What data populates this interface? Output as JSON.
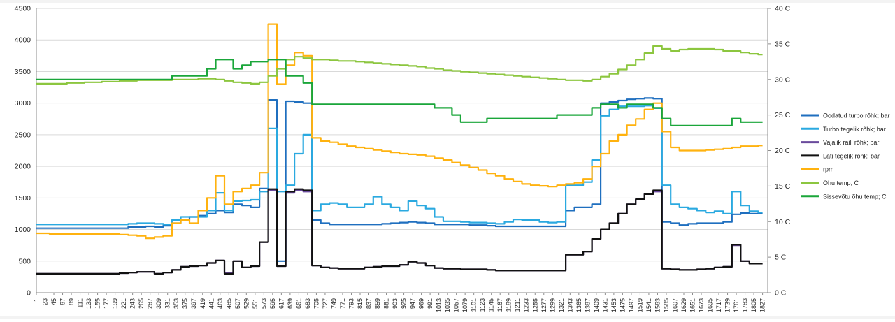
{
  "chart_data": {
    "type": "line",
    "x": [
      1,
      23,
      45,
      67,
      89,
      111,
      133,
      155,
      177,
      199,
      221,
      243,
      265,
      287,
      309,
      331,
      353,
      375,
      397,
      419,
      441,
      463,
      485,
      507,
      529,
      551,
      573,
      595,
      617,
      639,
      661,
      683,
      705,
      727,
      749,
      771,
      793,
      815,
      837,
      859,
      881,
      903,
      925,
      947,
      969,
      991,
      1013,
      1035,
      1057,
      1079,
      1101,
      1123,
      1145,
      1167,
      1189,
      1211,
      1233,
      1255,
      1277,
      1299,
      1321,
      1343,
      1365,
      1387,
      1409,
      1431,
      1453,
      1475,
      1497,
      1519,
      1541,
      1563,
      1585,
      1607,
      1629,
      1651,
      1673,
      1695,
      1717,
      1739,
      1761,
      1783,
      1805,
      1827
    ],
    "x_tick_labels": [
      "1",
      "23",
      "45",
      "67",
      "89",
      "111",
      "133",
      "155",
      "177",
      "199",
      "221",
      "243",
      "265",
      "287",
      "309",
      "331",
      "353",
      "375",
      "397",
      "419",
      "441",
      "463",
      "485",
      "507",
      "529",
      "551",
      "573",
      "595",
      "617",
      "639",
      "661",
      "683",
      "705",
      "727",
      "749",
      "771",
      "793",
      "815",
      "837",
      "859",
      "881",
      "903",
      "925",
      "947",
      "969",
      "991",
      "1013",
      "1035",
      "1057",
      "1079",
      "1101",
      "1123",
      "1145",
      "1167",
      "1189",
      "1211",
      "1233",
      "1255",
      "1277",
      "1299",
      "1321",
      "1343",
      "1365",
      "1387",
      "1409",
      "1431",
      "1453",
      "1475",
      "1497",
      "1519",
      "1541",
      "1563",
      "1585",
      "1607",
      "1629",
      "1651",
      "1673",
      "1695",
      "1717",
      "1739",
      "1761",
      "1783",
      "1805",
      "1827"
    ],
    "xlim": [
      1,
      1840
    ],
    "y_left": {
      "ylim": [
        0,
        4500
      ],
      "ticks": [
        "0",
        "500",
        "1000",
        "1500",
        "2000",
        "2500",
        "3000",
        "3500",
        "4000",
        "4500"
      ]
    },
    "y_right": {
      "ylim": [
        0,
        40
      ],
      "ticks": [
        "0 C",
        "5 C",
        "10 C",
        "15 C",
        "20 C",
        "25 C",
        "30 C",
        "35 C",
        "40 C"
      ]
    },
    "grid": "horizontal",
    "legend_position": "right",
    "series": [
      {
        "name": "Oodatud turbo rõhk; bar",
        "color": "#1f6fbf",
        "axis": "left",
        "values": [
          1020,
          1020,
          1020,
          1020,
          1020,
          1020,
          1020,
          1020,
          1020,
          1020,
          1020,
          1040,
          1040,
          1050,
          1040,
          1060,
          1100,
          1150,
          1200,
          1220,
          1250,
          1300,
          1270,
          1400,
          1380,
          1350,
          1650,
          3050,
          500,
          3030,
          3020,
          3000,
          1150,
          1100,
          1080,
          1080,
          1080,
          1080,
          1080,
          1080,
          1090,
          1100,
          1110,
          1120,
          1110,
          1100,
          1080,
          1080,
          1080,
          1080,
          1070,
          1070,
          1060,
          1050,
          1050,
          1050,
          1050,
          1050,
          1050,
          1050,
          1050,
          1300,
          1350,
          1350,
          1400,
          3000,
          3020,
          3040,
          3060,
          3070,
          3080,
          3070,
          1120,
          1100,
          1070,
          1090,
          1100,
          1100,
          1100,
          1120,
          1240,
          1260,
          1250,
          1250
        ]
      },
      {
        "name": "Turbo tegelik rõhk; bar",
        "color": "#2aa9e0",
        "axis": "left",
        "values": [
          1080,
          1080,
          1080,
          1080,
          1080,
          1080,
          1080,
          1080,
          1080,
          1080,
          1080,
          1090,
          1100,
          1100,
          1090,
          1080,
          1150,
          1200,
          1200,
          1200,
          1300,
          1580,
          1300,
          1450,
          1460,
          1470,
          1600,
          2600,
          1600,
          1700,
          2200,
          2500,
          1300,
          1400,
          1420,
          1400,
          1350,
          1350,
          1400,
          1520,
          1400,
          1350,
          1300,
          1450,
          1380,
          1330,
          1200,
          1130,
          1130,
          1120,
          1110,
          1110,
          1100,
          1090,
          1120,
          1160,
          1150,
          1150,
          1120,
          1110,
          1120,
          1700,
          1700,
          1750,
          2100,
          2800,
          2900,
          2950,
          2950,
          2950,
          2960,
          2920,
          1700,
          1400,
          1350,
          1330,
          1300,
          1270,
          1290,
          1250,
          1600,
          1380,
          1290,
          1270
        ]
      },
      {
        "name": "Vajalik raili rõhk; bar",
        "color": "#6a4a9c",
        "axis": "left",
        "values": [
          300,
          300,
          300,
          300,
          300,
          300,
          300,
          300,
          300,
          300,
          310,
          320,
          330,
          330,
          300,
          320,
          360,
          410,
          420,
          430,
          470,
          510,
          320,
          500,
          400,
          420,
          800,
          1620,
          420,
          1580,
          1620,
          1600,
          430,
          400,
          390,
          380,
          380,
          380,
          400,
          410,
          420,
          420,
          440,
          490,
          470,
          430,
          390,
          380,
          380,
          370,
          370,
          370,
          360,
          350,
          350,
          350,
          350,
          350,
          350,
          350,
          350,
          600,
          600,
          650,
          850,
          1000,
          1100,
          1250,
          1400,
          1480,
          1560,
          1600,
          380,
          370,
          360,
          360,
          370,
          380,
          400,
          410,
          750,
          500,
          460,
          460
        ]
      },
      {
        "name": "Lati tegelik rõhk; bar",
        "color": "#111111",
        "axis": "left",
        "values": [
          300,
          300,
          300,
          300,
          300,
          300,
          300,
          300,
          300,
          300,
          310,
          320,
          330,
          330,
          300,
          320,
          360,
          410,
          420,
          430,
          470,
          510,
          300,
          500,
          400,
          420,
          800,
          1640,
          420,
          1600,
          1640,
          1620,
          430,
          400,
          390,
          380,
          380,
          380,
          400,
          410,
          420,
          420,
          440,
          490,
          470,
          430,
          390,
          380,
          380,
          370,
          370,
          370,
          360,
          350,
          350,
          350,
          350,
          350,
          350,
          350,
          350,
          600,
          600,
          650,
          850,
          1000,
          1100,
          1250,
          1400,
          1480,
          1560,
          1620,
          380,
          370,
          360,
          360,
          370,
          380,
          400,
          410,
          760,
          500,
          460,
          460
        ]
      },
      {
        "name": "rpm",
        "color": "#ffb20f",
        "axis": "left",
        "values": [
          940,
          940,
          930,
          930,
          930,
          930,
          930,
          930,
          930,
          930,
          920,
          910,
          900,
          860,
          880,
          900,
          1100,
          1150,
          1100,
          1300,
          1500,
          1850,
          1400,
          1600,
          1650,
          1700,
          1900,
          4250,
          3300,
          3600,
          3800,
          3750,
          2450,
          2400,
          2380,
          2350,
          2320,
          2300,
          2280,
          2260,
          2240,
          2220,
          2200,
          2190,
          2180,
          2160,
          2130,
          2100,
          2060,
          2020,
          1980,
          1940,
          1890,
          1850,
          1800,
          1760,
          1720,
          1700,
          1690,
          1680,
          1700,
          1720,
          1740,
          1800,
          2000,
          2200,
          2400,
          2500,
          2650,
          2750,
          2900,
          3000,
          2550,
          2300,
          2250,
          2250,
          2250,
          2260,
          2270,
          2280,
          2300,
          2320,
          2320,
          2330
        ]
      },
      {
        "name": "Õhu temp; C",
        "color": "#8cc63f",
        "axis": "right",
        "values": [
          29.4,
          29.4,
          29.4,
          29.4,
          29.5,
          29.5,
          29.6,
          29.6,
          29.7,
          29.7,
          29.8,
          29.8,
          29.9,
          29.9,
          29.9,
          29.9,
          30.0,
          30.0,
          30.0,
          30.1,
          30.1,
          30.0,
          29.8,
          29.6,
          29.5,
          29.4,
          29.6,
          30.5,
          31.5,
          32.8,
          33.2,
          33.0,
          32.8,
          32.8,
          32.7,
          32.6,
          32.6,
          32.5,
          32.4,
          32.3,
          32.2,
          32.1,
          32.0,
          31.9,
          31.8,
          31.6,
          31.5,
          31.3,
          31.2,
          31.1,
          31.0,
          30.9,
          30.8,
          30.7,
          30.6,
          30.5,
          30.4,
          30.3,
          30.2,
          30.1,
          30.0,
          29.9,
          29.9,
          29.8,
          30.0,
          30.4,
          30.8,
          31.4,
          32.0,
          32.8,
          33.7,
          34.7,
          34.3,
          34.0,
          34.2,
          34.3,
          34.3,
          34.3,
          34.2,
          34.0,
          34.0,
          33.8,
          33.6,
          33.5
        ]
      },
      {
        "name": "Sissevõtu õhu temp; C",
        "color": "#1aa63a",
        "axis": "right",
        "values": [
          30.0,
          30.0,
          30.0,
          30.0,
          30.0,
          30.0,
          30.0,
          30.0,
          30.0,
          30.0,
          30.0,
          30.0,
          30.0,
          30.0,
          30.0,
          30.0,
          30.5,
          30.5,
          30.5,
          30.5,
          31.5,
          32.8,
          32.8,
          31.5,
          32.0,
          32.5,
          32.5,
          32.8,
          32.8,
          30.5,
          30.5,
          29.5,
          26.5,
          26.5,
          26.5,
          26.5,
          26.5,
          26.5,
          26.5,
          26.5,
          26.5,
          26.5,
          26.5,
          26.5,
          26.5,
          26.5,
          26.0,
          26.0,
          25.0,
          24.0,
          24.0,
          24.0,
          24.5,
          24.5,
          24.5,
          24.5,
          24.5,
          24.5,
          24.5,
          24.5,
          25.0,
          25.0,
          25.0,
          25.0,
          26.0,
          26.5,
          26.5,
          26.0,
          26.5,
          26.5,
          26.5,
          26.0,
          24.5,
          23.5,
          23.5,
          23.5,
          23.5,
          23.5,
          23.5,
          23.5,
          24.5,
          24.0,
          24.0,
          24.0
        ]
      }
    ]
  }
}
